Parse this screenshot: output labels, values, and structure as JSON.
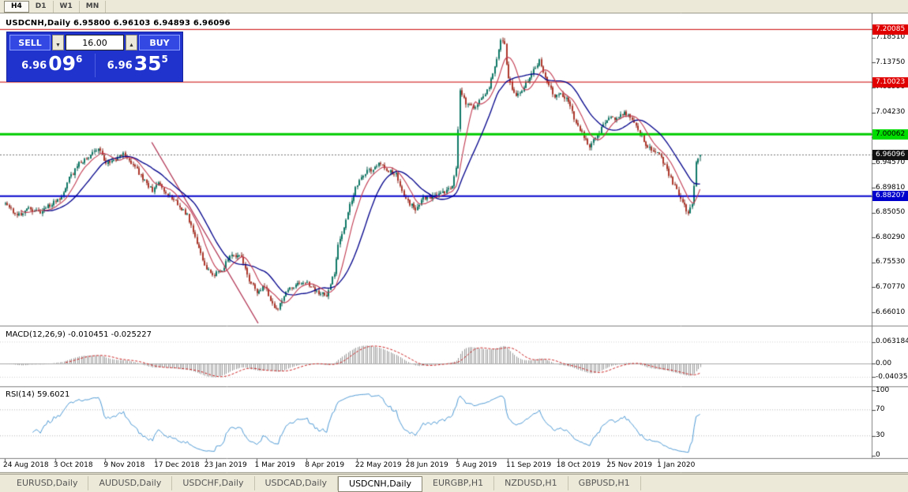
{
  "toolbar": {
    "periods": [
      {
        "label": "H4",
        "active": true
      },
      {
        "label": "D1",
        "active": false
      },
      {
        "label": "W1",
        "active": false
      },
      {
        "label": "MN",
        "active": false
      }
    ]
  },
  "chart": {
    "title": "USDCNH,Daily 6.95800 6.96103 6.94893 6.96096",
    "symbol": "USDCNH",
    "timeframe": "Daily",
    "open": "6.95800",
    "high": "6.96103",
    "low": "6.94893",
    "close": "6.96096"
  },
  "trade_panel": {
    "sell_label": "SELL",
    "buy_label": "BUY",
    "volume": "16.00",
    "sell_price": {
      "big_figure": "6.96",
      "pips": "09",
      "pipette": "6"
    },
    "buy_price": {
      "big_figure": "6.96",
      "pips": "35",
      "pipette": "5"
    }
  },
  "price_scale": {
    "ticks": [
      {
        "value": 7.1851,
        "label": "7.18510"
      },
      {
        "value": 7.1375,
        "label": "7.13750"
      },
      {
        "value": 7.0899,
        "label": "7.08990"
      },
      {
        "value": 7.0423,
        "label": "7.04230"
      },
      {
        "value": 6.9947,
        "label": "6.99470"
      },
      {
        "value": 6.9457,
        "label": "6.94570"
      },
      {
        "value": 6.8981,
        "label": "6.89810"
      },
      {
        "value": 6.8505,
        "label": "6.85050"
      },
      {
        "value": 6.8029,
        "label": "6.80290"
      },
      {
        "value": 6.7553,
        "label": "6.75530"
      },
      {
        "value": 6.7077,
        "label": "6.70770"
      },
      {
        "value": 6.6601,
        "label": "6.66010"
      }
    ],
    "badges": [
      {
        "value": 7.20085,
        "label": "7.20085",
        "bg": "#e00000",
        "fg": "#ffffff",
        "current": false
      },
      {
        "value": 7.10023,
        "label": "7.10023",
        "bg": "#e00000",
        "fg": "#ffffff",
        "current": false
      },
      {
        "value": 7.00062,
        "label": "7.00062",
        "bg": "#00dd00",
        "fg": "#000000",
        "current": false
      },
      {
        "value": 6.96096,
        "label": "6.96096",
        "bg": "#111111",
        "fg": "#ffffff",
        "current": true
      },
      {
        "value": 6.88207,
        "label": "6.88207",
        "bg": "#0000cc",
        "fg": "#ffffff",
        "current": false
      }
    ]
  },
  "indicators": {
    "macd": {
      "title": "MACD(12,26,9) -0.010451 -0.025227",
      "fast": 12,
      "slow": 26,
      "signal": 9,
      "scale_labels": [
        {
          "value": 0.063184,
          "label": "0.063184"
        },
        {
          "value": 0,
          "label": "0.00"
        },
        {
          "value": -0.040355,
          "label": "-0.040355"
        }
      ]
    },
    "rsi": {
      "title": "RSI(14) 59.6021",
      "period": 14,
      "levels": [
        70,
        30
      ],
      "scale_labels": [
        {
          "value": 100,
          "label": "100"
        },
        {
          "value": 70,
          "label": "70"
        },
        {
          "value": 30,
          "label": "30"
        },
        {
          "value": 0,
          "label": "0"
        }
      ]
    }
  },
  "x_axis": {
    "dates": [
      "24 Aug 2018",
      "3 Oct 2018",
      "9 Nov 2018",
      "17 Dec 2018",
      "23 Jan 2019",
      "1 Mar 2019",
      "8 Apr 2019",
      "22 May 2019",
      "28 Jun 2019",
      "5 Aug 2019",
      "11 Sep 2019",
      "18 Oct 2019",
      "25 Nov 2019",
      "1 Jan 2020"
    ]
  },
  "bottom_tabs": {
    "tabs": [
      {
        "label": "EURUSD,Daily",
        "active": false
      },
      {
        "label": "AUDUSD,Daily",
        "active": false
      },
      {
        "label": "USDCHF,Daily",
        "active": false
      },
      {
        "label": "USDCAD,Daily",
        "active": false
      },
      {
        "label": "USDCNH,Daily",
        "active": true
      },
      {
        "label": "EURGBP,H1",
        "active": false
      },
      {
        "label": "NZDUSD,H1",
        "active": false
      },
      {
        "label": "GBPUSD,H1",
        "active": false
      }
    ]
  },
  "chart_data": {
    "type": "candlestick",
    "symbol": "USDCNH",
    "timeframe": "D1",
    "title": "USDCNH,Daily",
    "y_range": [
      6.636,
      7.215
    ],
    "x_labels": [
      "24 Aug 2018",
      "3 Oct 2018",
      "9 Nov 2018",
      "17 Dec 2018",
      "23 Jan 2019",
      "1 Mar 2019",
      "8 Apr 2019",
      "22 May 2019",
      "28 Jun 2019",
      "5 Aug 2019",
      "11 Sep 2019",
      "18 Oct 2019",
      "25 Nov 2019",
      "1 Jan 2020"
    ],
    "current_price": 6.96096,
    "horizontal_lines": [
      {
        "price": 7.20085,
        "color": "#cc0000",
        "width": 1
      },
      {
        "price": 7.10023,
        "color": "#cc0000",
        "width": 1
      },
      {
        "price": 7.00062,
        "color": "#00cc00",
        "width": 3
      },
      {
        "price": 6.88207,
        "color": "#0000cc",
        "width": 2
      }
    ],
    "trendline": {
      "from_index": 76,
      "from_price": 6.985,
      "to_index": 131,
      "to_price": 6.639,
      "color": "#b03050"
    },
    "moving_averages": [
      {
        "type": "sma",
        "period": 9,
        "color": "#c23a50"
      },
      {
        "type": "sma",
        "period": 21,
        "color": "#00008b"
      }
    ],
    "macd": {
      "fast": 12,
      "slow": 26,
      "signal": 9,
      "last_values": [
        -0.010451,
        -0.025227
      ]
    },
    "rsi": {
      "period": 14,
      "last_value": 59.6021
    },
    "candles": {
      "count": 360,
      "seed": 11,
      "candles_per_label": 26,
      "last_ohlc": [
        6.958,
        6.96103,
        6.94893,
        6.96096
      ],
      "trend_anchors": [
        [
          0,
          6.868
        ],
        [
          6,
          6.845
        ],
        [
          12,
          6.858
        ],
        [
          18,
          6.852
        ],
        [
          24,
          6.868
        ],
        [
          28,
          6.874
        ],
        [
          33,
          6.916
        ],
        [
          38,
          6.944
        ],
        [
          44,
          6.96
        ],
        [
          48,
          6.976
        ],
        [
          52,
          6.944
        ],
        [
          57,
          6.954
        ],
        [
          61,
          6.962
        ],
        [
          66,
          6.944
        ],
        [
          71,
          6.914
        ],
        [
          76,
          6.893
        ],
        [
          79,
          6.906
        ],
        [
          84,
          6.884
        ],
        [
          89,
          6.868
        ],
        [
          94,
          6.846
        ],
        [
          99,
          6.792
        ],
        [
          104,
          6.742
        ],
        [
          108,
          6.732
        ],
        [
          112,
          6.742
        ],
        [
          117,
          6.772
        ],
        [
          122,
          6.766
        ],
        [
          126,
          6.722
        ],
        [
          130,
          6.7
        ],
        [
          134,
          6.712
        ],
        [
          138,
          6.674
        ],
        [
          141,
          6.665
        ],
        [
          145,
          6.7
        ],
        [
          150,
          6.712
        ],
        [
          156,
          6.716
        ],
        [
          161,
          6.7
        ],
        [
          166,
          6.69
        ],
        [
          170,
          6.736
        ],
        [
          172,
          6.79
        ],
        [
          175,
          6.82
        ],
        [
          178,
          6.866
        ],
        [
          182,
          6.906
        ],
        [
          186,
          6.928
        ],
        [
          190,
          6.934
        ],
        [
          194,
          6.946
        ],
        [
          198,
          6.93
        ],
        [
          202,
          6.924
        ],
        [
          206,
          6.884
        ],
        [
          209,
          6.868
        ],
        [
          212,
          6.856
        ],
        [
          216,
          6.88
        ],
        [
          222,
          6.882
        ],
        [
          228,
          6.892
        ],
        [
          231,
          6.9
        ],
        [
          233,
          6.938
        ],
        [
          235,
          7.086
        ],
        [
          238,
          7.06
        ],
        [
          242,
          7.052
        ],
        [
          246,
          7.066
        ],
        [
          250,
          7.09
        ],
        [
          254,
          7.148
        ],
        [
          256,
          7.18
        ],
        [
          258,
          7.172
        ],
        [
          260,
          7.104
        ],
        [
          264,
          7.072
        ],
        [
          268,
          7.09
        ],
        [
          272,
          7.12
        ],
        [
          276,
          7.14
        ],
        [
          280,
          7.102
        ],
        [
          284,
          7.072
        ],
        [
          286,
          7.08
        ],
        [
          290,
          7.07
        ],
        [
          294,
          7.032
        ],
        [
          298,
          7.002
        ],
        [
          302,
          6.978
        ],
        [
          306,
          7.0
        ],
        [
          310,
          7.022
        ],
        [
          312,
          7.03
        ],
        [
          316,
          7.032
        ],
        [
          320,
          7.042
        ],
        [
          324,
          7.03
        ],
        [
          328,
          7.002
        ],
        [
          331,
          6.982
        ],
        [
          334,
          6.972
        ],
        [
          338,
          6.962
        ],
        [
          342,
          6.932
        ],
        [
          346,
          6.9
        ],
        [
          350,
          6.872
        ],
        [
          353,
          6.848
        ],
        [
          355,
          6.866
        ],
        [
          357,
          6.944
        ],
        [
          358,
          6.954
        ],
        [
          359,
          6.958
        ]
      ]
    }
  }
}
